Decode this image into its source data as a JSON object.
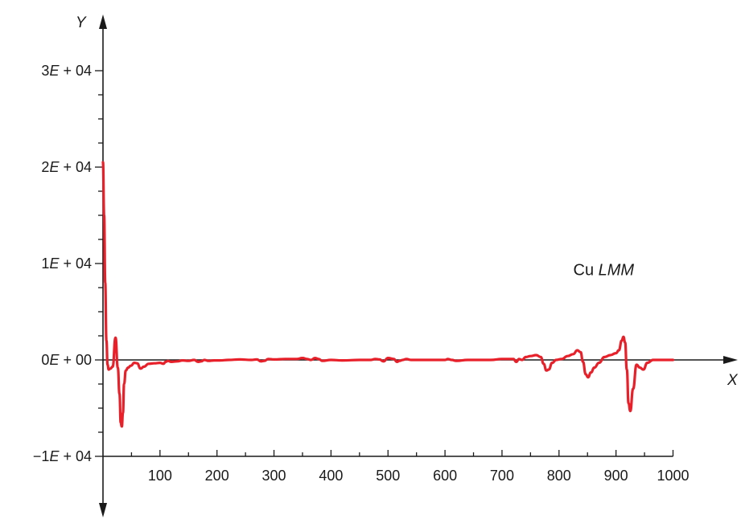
{
  "chart_data": {
    "type": "line",
    "title": "",
    "xlabel": "X",
    "ylabel": "Y",
    "xlim": [
      0,
      1000
    ],
    "ylim": [
      -10000,
      30000
    ],
    "grid": false,
    "x_ticks": [
      {
        "value": 100,
        "label": "100"
      },
      {
        "value": 200,
        "label": "200"
      },
      {
        "value": 300,
        "label": "300"
      },
      {
        "value": 400,
        "label": "400"
      },
      {
        "value": 500,
        "label": "500"
      },
      {
        "value": 600,
        "label": "600"
      },
      {
        "value": 700,
        "label": "700"
      },
      {
        "value": 800,
        "label": "800"
      },
      {
        "value": 900,
        "label": "900"
      },
      {
        "value": 1000,
        "label": "1000"
      }
    ],
    "y_ticks": [
      {
        "value": -10000,
        "prefix": "−1",
        "italic": "E",
        "suffix": " + 04"
      },
      {
        "value": 0,
        "prefix": "0",
        "italic": "E",
        "suffix": " + 00"
      },
      {
        "value": 10000,
        "prefix": "1",
        "italic": "E",
        "suffix": " + 04"
      },
      {
        "value": 20000,
        "prefix": "2",
        "italic": "E",
        "suffix": " + 04"
      },
      {
        "value": 30000,
        "prefix": "3",
        "italic": "E",
        "suffix": " + 04"
      }
    ],
    "annotation": {
      "prefix": "Cu ",
      "italic": "LMM",
      "x": 825,
      "y": 8800
    },
    "series": [
      {
        "color": "#e8202a",
        "x": [
          0,
          2,
          4,
          6,
          8,
          10,
          13,
          17,
          22,
          26,
          29,
          31,
          33,
          35,
          37,
          40,
          44,
          49,
          55,
          60,
          66,
          72,
          80,
          90,
          100,
          106,
          110,
          114,
          120,
          130,
          140,
          150,
          160,
          167,
          172,
          178,
          185,
          195,
          205,
          220,
          240,
          260,
          270,
          277,
          283,
          290,
          300,
          320,
          340,
          350,
          358,
          365,
          372,
          378,
          385,
          400,
          420,
          450,
          470,
          478,
          485,
          492,
          500,
          510,
          516,
          520,
          526,
          532,
          540,
          560,
          580,
          600,
          605,
          612,
          620,
          640,
          660,
          680,
          700,
          720,
          725,
          730,
          735,
          742,
          750,
          760,
          768,
          773,
          778,
          782,
          788,
          795,
          805,
          815,
          825,
          832,
          838,
          842,
          847,
          851,
          856,
          862,
          870,
          880,
          890,
          900,
          905,
          910,
          913,
          916,
          919,
          922,
          925,
          930,
          936,
          942,
          948,
          955,
          965,
          980,
          1000
        ],
        "y": [
          20500,
          15000,
          8000,
          2000,
          -500,
          -1000,
          -900,
          -700,
          2300,
          -800,
          -3500,
          -6500,
          -6900,
          -5500,
          -2500,
          -1100,
          -800,
          -600,
          -300,
          -350,
          -900,
          -700,
          -400,
          -350,
          -300,
          -400,
          -200,
          -100,
          -200,
          -150,
          -50,
          -100,
          0,
          -200,
          -150,
          0,
          -100,
          -50,
          -50,
          0,
          50,
          0,
          50,
          -150,
          -100,
          100,
          50,
          100,
          100,
          200,
          100,
          0,
          200,
          100,
          -100,
          0,
          -50,
          0,
          0,
          100,
          50,
          -150,
          200,
          100,
          -200,
          -100,
          0,
          100,
          0,
          0,
          0,
          0,
          100,
          0,
          -100,
          0,
          0,
          0,
          100,
          100,
          -200,
          100,
          0,
          300,
          400,
          500,
          300,
          -400,
          -1100,
          -1000,
          -300,
          0,
          100,
          400,
          600,
          1000,
          800,
          -200,
          -1500,
          -1800,
          -1300,
          -800,
          -300,
          300,
          500,
          700,
          1000,
          2000,
          2400,
          1800,
          -1000,
          -4500,
          -5300,
          -3000,
          -500,
          -800,
          -1000,
          -300,
          0,
          0,
          0
        ]
      }
    ]
  }
}
